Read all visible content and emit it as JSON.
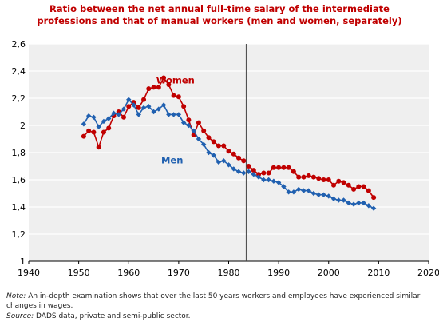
{
  "chart_data": {
    "type": "line",
    "title_lines": [
      "Ratio between the net annual full-time salary of the intermediate",
      "professions and that of manual workers (men and women, separately)"
    ],
    "xlim": [
      1940,
      2020
    ],
    "ylim": [
      1,
      2.6
    ],
    "x_ticks": [
      1940,
      1950,
      1960,
      1970,
      1980,
      1990,
      2000,
      2010,
      2020
    ],
    "y_ticks": [
      1,
      1.2,
      1.4,
      1.6,
      1.8,
      2,
      2.2,
      2.4,
      2.6
    ],
    "y_tick_labels": [
      "1",
      "1,2",
      "1,4",
      "1,6",
      "1,8",
      "2",
      "2,2",
      "2,4",
      "2,6"
    ],
    "grid": "horizontal",
    "break_line_x": 1983.5,
    "series": [
      {
        "name": "Women",
        "color": "#c00000",
        "marker": "circle",
        "segments": [
          {
            "x": [
              1951,
              1952,
              1953,
              1954,
              1955,
              1956,
              1957,
              1958,
              1959,
              1960,
              1961,
              1962,
              1963,
              1964,
              1965,
              1966,
              1967,
              1968,
              1969,
              1970,
              1971,
              1972,
              1973,
              1974,
              1975,
              1976,
              1977,
              1978,
              1979,
              1980,
              1981,
              1982,
              1983
            ],
            "y": [
              1.92,
              1.96,
              1.95,
              1.84,
              1.95,
              1.98,
              2.07,
              2.1,
              2.06,
              2.14,
              2.17,
              2.13,
              2.19,
              2.27,
              2.28,
              2.28,
              2.35,
              2.3,
              2.22,
              2.21,
              2.14,
              2.04,
              1.93,
              2.02,
              1.96,
              1.91,
              1.88,
              1.85,
              1.85,
              1.81,
              1.79,
              1.76,
              1.74
            ]
          },
          {
            "x": [
              1984,
              1985,
              1986,
              1987,
              1988,
              1989,
              1990,
              1991,
              1992,
              1993,
              1994,
              1995,
              1996,
              1997,
              1998,
              1999,
              2000,
              2001,
              2002,
              2003,
              2004,
              2005,
              2006,
              2007,
              2008,
              2009
            ],
            "y": [
              1.7,
              1.67,
              1.64,
              1.65,
              1.65,
              1.69,
              1.69,
              1.69,
              1.69,
              1.66,
              1.62,
              1.62,
              1.63,
              1.62,
              1.61,
              1.6,
              1.6,
              1.56,
              1.59,
              1.58,
              1.56,
              1.53,
              1.55,
              1.55,
              1.52,
              1.47
            ]
          }
        ]
      },
      {
        "name": "Men",
        "color": "#2060b0",
        "marker": "diamond",
        "segments": [
          {
            "x": [
              1951,
              1952,
              1953,
              1954,
              1955,
              1956,
              1957,
              1958,
              1959,
              1960,
              1961,
              1962,
              1963,
              1964,
              1965,
              1966,
              1967,
              1968,
              1969,
              1970,
              1971,
              1972,
              1973,
              1974,
              1975,
              1976,
              1977,
              1978,
              1979,
              1980,
              1981,
              1982,
              1983
            ],
            "y": [
              2.01,
              2.07,
              2.06,
              1.99,
              2.03,
              2.05,
              2.09,
              2.08,
              2.12,
              2.19,
              2.15,
              2.08,
              2.13,
              2.14,
              2.1,
              2.12,
              2.15,
              2.08,
              2.08,
              2.08,
              2.02,
              2.0,
              1.96,
              1.9,
              1.86,
              1.8,
              1.78,
              1.73,
              1.74,
              1.71,
              1.68,
              1.66,
              1.65
            ]
          },
          {
            "x": [
              1984,
              1985,
              1986,
              1987,
              1988,
              1989,
              1990,
              1991,
              1992,
              1993,
              1994,
              1995,
              1996,
              1997,
              1998,
              1999,
              2000,
              2001,
              2002,
              2003,
              2004,
              2005,
              2006,
              2007,
              2008,
              2009
            ],
            "y": [
              1.66,
              1.64,
              1.62,
              1.6,
              1.6,
              1.59,
              1.58,
              1.55,
              1.51,
              1.51,
              1.53,
              1.52,
              1.52,
              1.5,
              1.49,
              1.49,
              1.48,
              1.46,
              1.45,
              1.45,
              1.43,
              1.42,
              1.43,
              1.43,
              1.41,
              1.39
            ]
          }
        ]
      }
    ],
    "series_labels": [
      {
        "text": "Women",
        "color": "#c00000",
        "x": 1965.5,
        "y": 2.31
      },
      {
        "text": "Men",
        "color": "#2060b0",
        "x": 1966.5,
        "y": 1.72
      }
    ]
  },
  "footnotes": {
    "note_label": "Note:",
    "note_text": " An in-depth examination shows that over the last 50 years workers and employees have experienced similar changes in wages.",
    "source_label": "Source:",
    "source_text": " DADS data, private and semi-public sector."
  }
}
